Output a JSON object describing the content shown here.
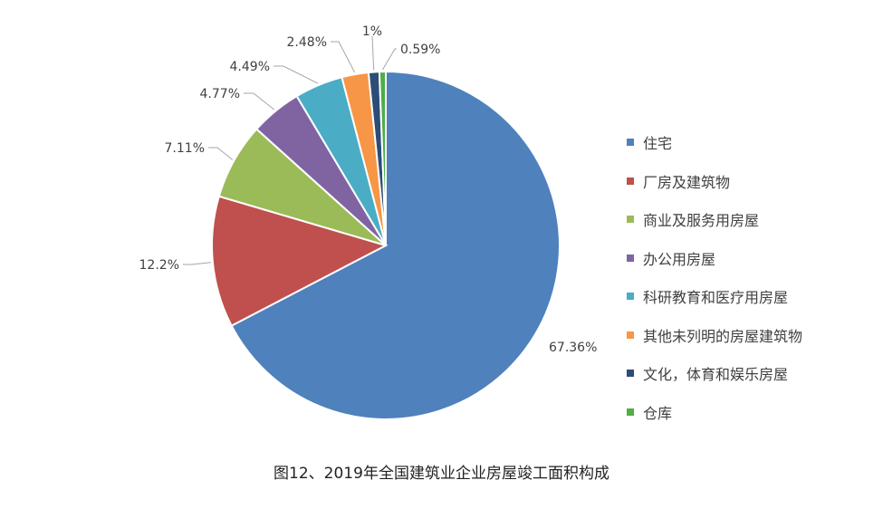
{
  "chart_data": {
    "type": "pie",
    "title": "图12、2019年全国建筑业企业房屋竣工面积构成",
    "categories": [
      "住宅",
      "厂房及建筑物",
      "商业及服务用房屋",
      "办公用房屋",
      "科研教育和医疗用房屋",
      "其他未列明的房屋建筑物",
      "文化，体育和娱乐房屋",
      "仓库"
    ],
    "values": [
      67.36,
      12.2,
      7.11,
      4.77,
      4.49,
      2.48,
      1,
      0.59
    ],
    "data_labels": [
      "67.36%",
      "12.2%",
      "7.11%",
      "4.77%",
      "4.49%",
      "2.48%",
      "1%",
      "0.59%"
    ],
    "colors": [
      "#4f81bd",
      "#c0504d",
      "#9bbb59",
      "#8064a2",
      "#4bacc6",
      "#f79646",
      "#2c4d75",
      "#4eae48"
    ],
    "legend_position": "right"
  }
}
